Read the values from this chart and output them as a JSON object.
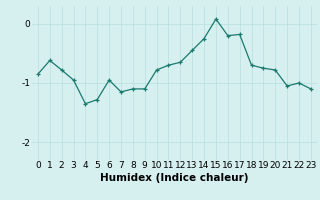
{
  "x": [
    0,
    1,
    2,
    3,
    4,
    5,
    6,
    7,
    8,
    9,
    10,
    11,
    12,
    13,
    14,
    15,
    16,
    17,
    18,
    19,
    20,
    21,
    22,
    23
  ],
  "y": [
    -0.85,
    -0.62,
    -0.78,
    -0.95,
    -1.35,
    -1.28,
    -0.95,
    -1.15,
    -1.1,
    -1.1,
    -0.78,
    -0.7,
    -0.65,
    -0.45,
    -0.25,
    0.08,
    -0.2,
    -0.18,
    -0.7,
    -0.75,
    -0.78,
    -1.05,
    -1.0,
    -1.1
  ],
  "title": "",
  "xlabel": "Humidex (Indice chaleur)",
  "ylabel": "",
  "xlim": [
    -0.5,
    23.5
  ],
  "ylim": [
    -2.3,
    0.3
  ],
  "yticks": [
    -2,
    -1,
    0
  ],
  "xticks": [
    0,
    1,
    2,
    3,
    4,
    5,
    6,
    7,
    8,
    9,
    10,
    11,
    12,
    13,
    14,
    15,
    16,
    17,
    18,
    19,
    20,
    21,
    22,
    23
  ],
  "line_color": "#1a7a6e",
  "marker": "+",
  "bg_color": "#d6f0f0",
  "grid_color": "#b8dede",
  "tick_fontsize": 6.5,
  "xlabel_fontsize": 7.5
}
